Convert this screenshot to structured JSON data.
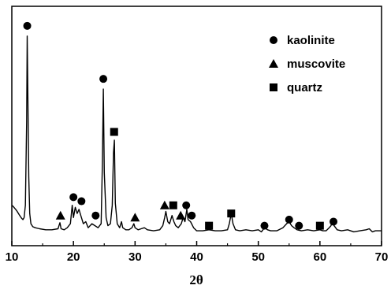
{
  "chart_data": {
    "type": "line",
    "title": "",
    "xlabel": "2θ",
    "ylabel": "",
    "xlim": [
      10,
      70
    ],
    "ylim": [
      0,
      1
    ],
    "grid": false,
    "legend_position": "top-right",
    "x_ticks": [
      10,
      20,
      30,
      40,
      50,
      60,
      70
    ],
    "x_tick_labels": [
      "10",
      "20",
      "30",
      "40",
      "50",
      "60",
      "70"
    ],
    "series": [
      {
        "style": "line",
        "color": "#000000",
        "points": [
          [
            10.0,
            0.14
          ],
          [
            10.2,
            0.135
          ],
          [
            10.4,
            0.128
          ],
          [
            10.6,
            0.121
          ],
          [
            10.8,
            0.113
          ],
          [
            11.0,
            0.104
          ],
          [
            11.2,
            0.094
          ],
          [
            11.4,
            0.085
          ],
          [
            11.6,
            0.076
          ],
          [
            11.8,
            0.07
          ],
          [
            12.0,
            0.08
          ],
          [
            12.2,
            0.14
          ],
          [
            12.4,
            0.55
          ],
          [
            12.5,
            0.97
          ],
          [
            12.6,
            0.7
          ],
          [
            12.75,
            0.28
          ],
          [
            12.9,
            0.1
          ],
          [
            13.1,
            0.05
          ],
          [
            13.4,
            0.035
          ],
          [
            13.8,
            0.03
          ],
          [
            14.5,
            0.025
          ],
          [
            15.5,
            0.02
          ],
          [
            16.5,
            0.02
          ],
          [
            17.5,
            0.025
          ],
          [
            17.8,
            0.055
          ],
          [
            18.0,
            0.025
          ],
          [
            18.5,
            0.02
          ],
          [
            19.0,
            0.03
          ],
          [
            19.5,
            0.05
          ],
          [
            19.8,
            0.14
          ],
          [
            20.0,
            0.08
          ],
          [
            20.3,
            0.13
          ],
          [
            20.6,
            0.1
          ],
          [
            20.9,
            0.12
          ],
          [
            21.2,
            0.09
          ],
          [
            21.6,
            0.05
          ],
          [
            22.0,
            0.06
          ],
          [
            22.4,
            0.03
          ],
          [
            23.0,
            0.05
          ],
          [
            23.5,
            0.04
          ],
          [
            24.0,
            0.03
          ],
          [
            24.5,
            0.05
          ],
          [
            24.7,
            0.35
          ],
          [
            24.85,
            0.71
          ],
          [
            25.0,
            0.3
          ],
          [
            25.3,
            0.08
          ],
          [
            25.6,
            0.04
          ],
          [
            26.0,
            0.05
          ],
          [
            26.3,
            0.14
          ],
          [
            26.5,
            0.4
          ],
          [
            26.65,
            0.46
          ],
          [
            26.8,
            0.15
          ],
          [
            27.1,
            0.05
          ],
          [
            27.5,
            0.03
          ],
          [
            27.8,
            0.06
          ],
          [
            28.0,
            0.03
          ],
          [
            28.5,
            0.02
          ],
          [
            29.0,
            0.02
          ],
          [
            29.5,
            0.03
          ],
          [
            29.8,
            0.05
          ],
          [
            30.0,
            0.03
          ],
          [
            30.5,
            0.02
          ],
          [
            31.0,
            0.025
          ],
          [
            31.5,
            0.03
          ],
          [
            32.0,
            0.02
          ],
          [
            33.0,
            0.015
          ],
          [
            34.0,
            0.02
          ],
          [
            34.5,
            0.04
          ],
          [
            34.8,
            0.08
          ],
          [
            35.0,
            0.11
          ],
          [
            35.3,
            0.06
          ],
          [
            35.6,
            0.05
          ],
          [
            36.0,
            0.09
          ],
          [
            36.3,
            0.06
          ],
          [
            36.6,
            0.04
          ],
          [
            37.0,
            0.03
          ],
          [
            37.5,
            0.05
          ],
          [
            37.8,
            0.08
          ],
          [
            38.1,
            0.06
          ],
          [
            38.4,
            0.12
          ],
          [
            38.6,
            0.07
          ],
          [
            39.0,
            0.06
          ],
          [
            39.5,
            0.03
          ],
          [
            40.0,
            0.015
          ],
          [
            41.0,
            0.015
          ],
          [
            42.0,
            0.02
          ],
          [
            43.0,
            0.015
          ],
          [
            44.0,
            0.015
          ],
          [
            45.0,
            0.02
          ],
          [
            45.3,
            0.05
          ],
          [
            45.6,
            0.1
          ],
          [
            45.9,
            0.05
          ],
          [
            46.3,
            0.02
          ],
          [
            47.0,
            0.015
          ],
          [
            48.0,
            0.02
          ],
          [
            49.0,
            0.015
          ],
          [
            50.0,
            0.02
          ],
          [
            50.5,
            0.01
          ],
          [
            51.0,
            0.03
          ],
          [
            51.5,
            0.02
          ],
          [
            52.0,
            0.015
          ],
          [
            53.0,
            0.015
          ],
          [
            54.0,
            0.03
          ],
          [
            54.6,
            0.05
          ],
          [
            55.0,
            0.06
          ],
          [
            55.4,
            0.04
          ],
          [
            55.8,
            0.03
          ],
          [
            56.3,
            0.02
          ],
          [
            57.0,
            0.015
          ],
          [
            58.0,
            0.02
          ],
          [
            59.0,
            0.015
          ],
          [
            60.0,
            0.02
          ],
          [
            60.5,
            0.015
          ],
          [
            61.0,
            0.015
          ],
          [
            61.5,
            0.03
          ],
          [
            61.8,
            0.04
          ],
          [
            62.0,
            0.07
          ],
          [
            62.3,
            0.04
          ],
          [
            62.8,
            0.02
          ],
          [
            63.5,
            0.015
          ],
          [
            64.5,
            0.02
          ],
          [
            65.5,
            0.01
          ],
          [
            66.5,
            0.015
          ],
          [
            67.5,
            0.02
          ],
          [
            68.0,
            0.025
          ],
          [
            68.5,
            0.01
          ],
          [
            69.0,
            0.015
          ],
          [
            70.0,
            0.015
          ]
        ]
      },
      {
        "name": "kaolinite",
        "style": "marker",
        "marker": "circle",
        "points": [
          [
            12.5,
            1.02
          ],
          [
            20.0,
            0.18
          ],
          [
            21.3,
            0.16
          ],
          [
            23.6,
            0.09
          ],
          [
            24.85,
            0.76
          ],
          [
            38.3,
            0.14
          ],
          [
            39.2,
            0.09
          ],
          [
            51.0,
            0.04
          ],
          [
            55.0,
            0.07
          ],
          [
            56.6,
            0.04
          ],
          [
            62.2,
            0.06
          ]
        ]
      },
      {
        "name": "muscovite",
        "style": "marker",
        "marker": "triangle",
        "points": [
          [
            17.9,
            0.09
          ],
          [
            30.0,
            0.08
          ],
          [
            34.8,
            0.14
          ],
          [
            37.4,
            0.09
          ]
        ]
      },
      {
        "name": "quartz",
        "style": "marker",
        "marker": "square",
        "points": [
          [
            26.6,
            0.5
          ],
          [
            36.2,
            0.14
          ],
          [
            42.0,
            0.04
          ],
          [
            45.6,
            0.1
          ],
          [
            60.0,
            0.04
          ]
        ]
      }
    ]
  }
}
